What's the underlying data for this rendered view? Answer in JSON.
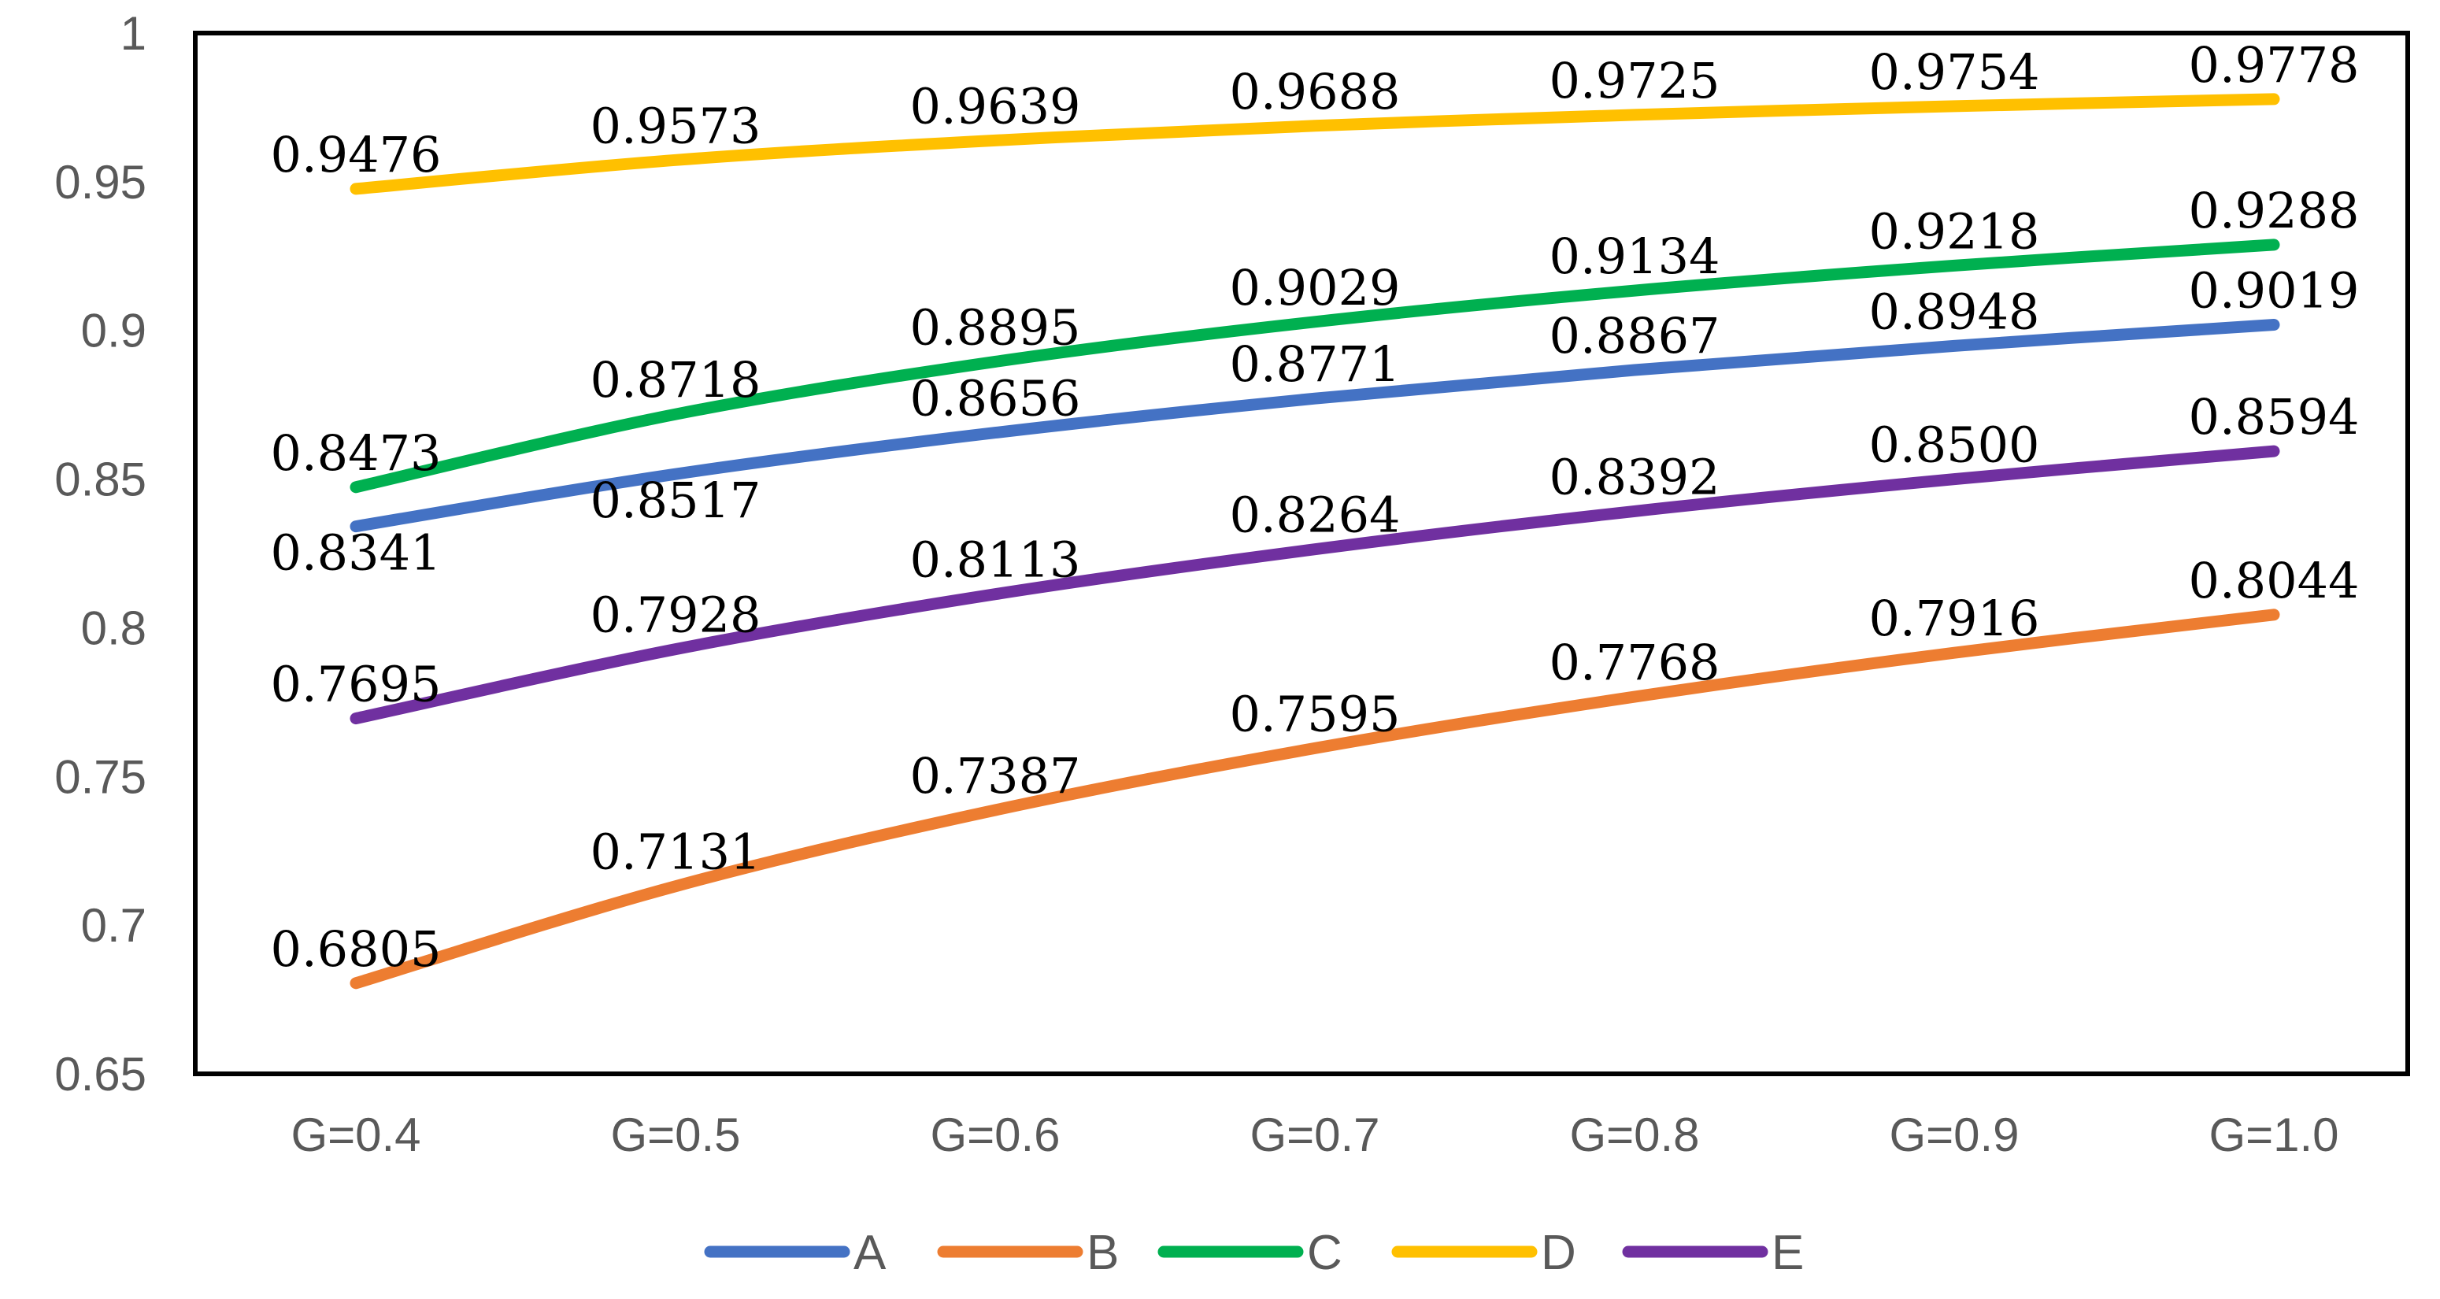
{
  "chart_data": {
    "type": "line",
    "categories": [
      "G=0.4",
      "G=0.5",
      "G=0.6",
      "G=0.7",
      "G=0.8",
      "G=0.9",
      "G=1.0"
    ],
    "ylim": [
      0.65,
      1
    ],
    "y_ticks": [
      0.65,
      0.7,
      0.75,
      0.8,
      0.85,
      0.9,
      0.95,
      1
    ],
    "y_tick_labels": [
      "0.65",
      "0.7",
      "0.75",
      "0.8",
      "0.85",
      "0.9",
      "0.95",
      "1"
    ],
    "title": "",
    "xlabel": "",
    "ylabel": "",
    "legend_position": "bottom",
    "series": [
      {
        "name": "A",
        "color": "#4472C4",
        "values": [
          0.8341,
          0.8517,
          0.8656,
          0.8771,
          0.8867,
          0.8948,
          0.9019
        ],
        "labels": [
          "0.8341",
          "0.8517",
          "0.8656",
          "0.8771",
          "0.8867",
          "0.8948",
          "0.9019"
        ]
      },
      {
        "name": "B",
        "color": "#ED7D31",
        "values": [
          0.6805,
          0.7131,
          0.7387,
          0.7595,
          0.7768,
          0.7916,
          0.8044
        ],
        "labels": [
          "0.6805",
          "0.7131",
          "0.7387",
          "0.7595",
          "0.7768",
          "0.7916",
          "0.8044"
        ]
      },
      {
        "name": "C",
        "color": "#00B050",
        "values": [
          0.8473,
          0.8718,
          0.8895,
          0.9029,
          0.9134,
          0.9218,
          0.9288
        ],
        "labels": [
          "0.8473",
          "0.8718",
          "0.8895",
          "0.9029",
          "0.9134",
          "0.9218",
          "0.9288"
        ]
      },
      {
        "name": "D",
        "color": "#FFC000",
        "values": [
          0.9476,
          0.9573,
          0.9639,
          0.9688,
          0.9725,
          0.9754,
          0.9778
        ],
        "labels": [
          "0.9476",
          "0.9573",
          "0.9639",
          "0.9688",
          "0.9725",
          "0.9754",
          "0.9778"
        ]
      },
      {
        "name": "E",
        "color": "#7030A0",
        "values": [
          0.7695,
          0.7928,
          0.8113,
          0.8264,
          0.8392,
          0.85,
          0.8594
        ],
        "labels": [
          "0.7695",
          "0.7928",
          "0.8113",
          "0.8264",
          "0.8392",
          "0.8500",
          "0.8594"
        ]
      }
    ]
  }
}
